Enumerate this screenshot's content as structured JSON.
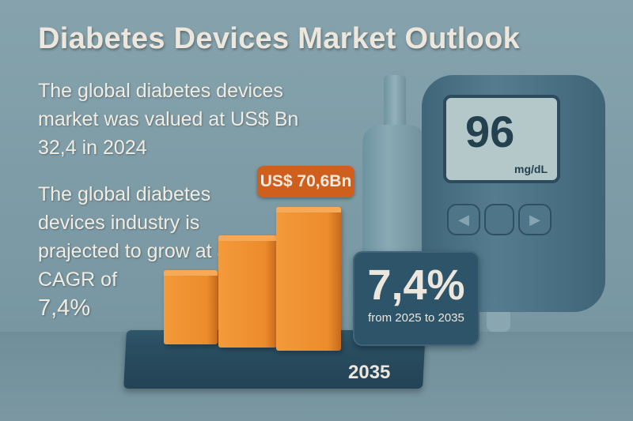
{
  "title": "Diabetes Devices Market Outlook",
  "paragraph1": "The global diabetes devices market was valued at US$ Bn 32,4 in 2024",
  "paragraph2": "The global diabetes devices industry is prajected to grow at a CAGR of",
  "paragraph2_value": "7,4%",
  "meter": {
    "reading": "96",
    "unit": "mg/dL",
    "left_arrow": "◀",
    "right_arrow": "▶"
  },
  "bar_label": "US$ 70,6Bn",
  "base_year": "2035",
  "cagr": {
    "value": "7,4%",
    "subtitle": "from 2025 to 2035"
  },
  "colors": {
    "bar": "#ec8b2c",
    "label": "#cf5f1d",
    "dark": "#2d5468"
  }
}
